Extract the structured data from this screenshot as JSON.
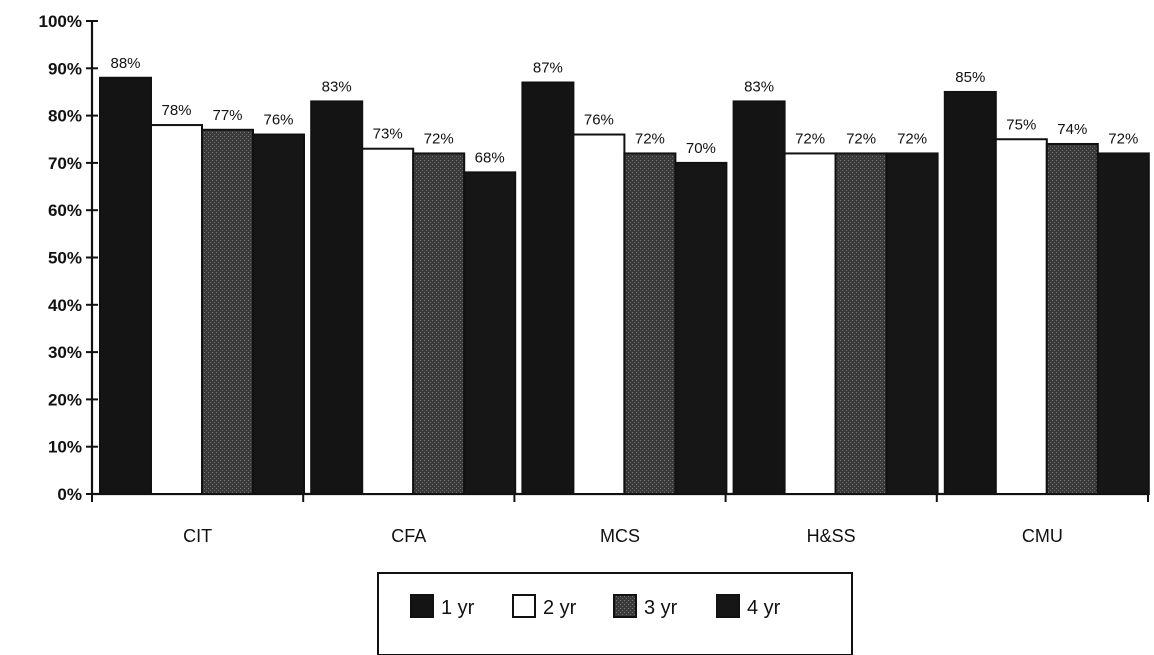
{
  "chart_data": {
    "type": "bar",
    "categories": [
      "CIT",
      "CFA",
      "MCS",
      "H&SS",
      "CMU"
    ],
    "series": [
      {
        "name": "1 yr",
        "values": [
          88,
          83,
          87,
          83,
          85
        ],
        "labels": [
          "88%",
          "83%",
          "87%",
          "83%",
          "85%"
        ],
        "color": "#141414"
      },
      {
        "name": "2 yr",
        "values": [
          78,
          73,
          76,
          72,
          75
        ],
        "labels": [
          "78%",
          "73%",
          "76%",
          "72%",
          "75%"
        ],
        "color": "#ffffff"
      },
      {
        "name": "3 yr",
        "values": [
          77,
          72,
          72,
          72,
          74
        ],
        "labels": [
          "77%",
          "72%",
          "72%",
          "72%",
          "74%"
        ],
        "color": "#3a3a3a"
      },
      {
        "name": "4 yr",
        "values": [
          76,
          68,
          70,
          72,
          72
        ],
        "labels": [
          "76%",
          "68%",
          "70%",
          "72%",
          "72%"
        ],
        "color": "#161616"
      }
    ],
    "y_ticks": [
      "0%",
      "10%",
      "20%",
      "30%",
      "40%",
      "50%",
      "60%",
      "70%",
      "80%",
      "90%",
      "100%"
    ],
    "ylim": [
      0,
      100
    ],
    "grid": false,
    "legend_position": "bottom-center"
  }
}
